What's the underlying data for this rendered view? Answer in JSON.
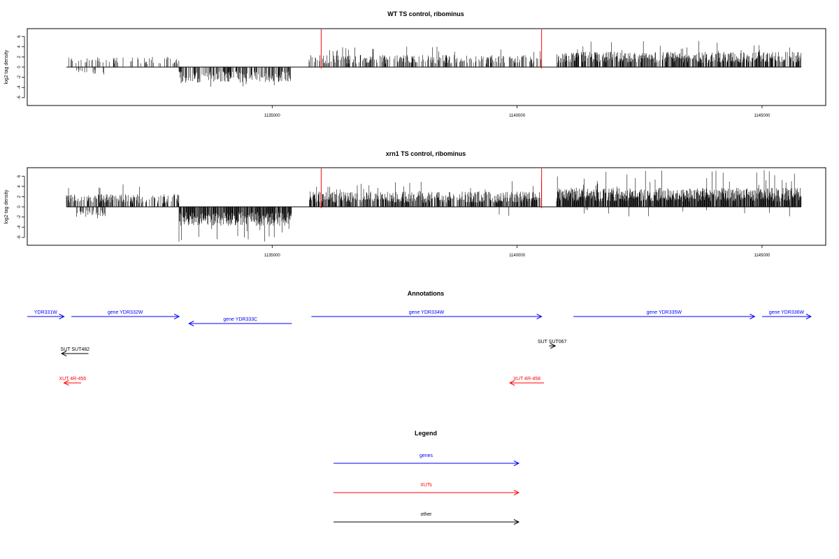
{
  "colors": {
    "gene": "#0000ff",
    "xut": "#ff0000",
    "other": "#000000",
    "bar": "#000000",
    "marker": "#ff0000"
  },
  "chart_data": [
    {
      "type": "bar",
      "title": "WT TS control, ribominus",
      "ylabel": "log2 tag density",
      "ylim": [
        -7.5,
        7.5
      ],
      "y_ticks": [
        -6,
        -4,
        -2,
        0,
        2,
        4,
        6
      ],
      "xlim": [
        1130000,
        1146300
      ],
      "x_ticks": [
        1135000,
        1140000,
        1145000
      ],
      "red_markers": [
        1136000,
        1140500
      ],
      "regions": [
        {
          "from": 1130800,
          "to": 1133100,
          "strand": "+",
          "mean": 1.6,
          "max": 3.6,
          "density": 0.25
        },
        {
          "from": 1131000,
          "to": 1131600,
          "strand": "-",
          "mean": 1.2,
          "max": 1.8,
          "density": 0.15
        },
        {
          "from": 1133100,
          "to": 1135400,
          "strand": "-",
          "mean": 2.4,
          "max": 4.5,
          "density": 0.6
        },
        {
          "from": 1135750,
          "to": 1140500,
          "strand": "+",
          "mean": 1.9,
          "max": 4.2,
          "density": 0.4
        },
        {
          "from": 1140800,
          "to": 1145800,
          "strand": "+",
          "mean": 2.4,
          "max": 5.2,
          "density": 0.7
        }
      ]
    },
    {
      "type": "bar",
      "title": "xrn1 TS control, ribominus",
      "ylabel": "log2 tag density",
      "ylim": [
        -7.5,
        7.5
      ],
      "y_ticks": [
        -6,
        -4,
        -2,
        0,
        2,
        4,
        6
      ],
      "xlim": [
        1130000,
        1146300
      ],
      "x_ticks": [
        1135000,
        1140000,
        1145000
      ],
      "red_markers": [
        1136000,
        1140500
      ],
      "regions": [
        {
          "from": 1130800,
          "to": 1133100,
          "strand": "+",
          "mean": 2.0,
          "max": 5.1,
          "density": 0.5
        },
        {
          "from": 1131000,
          "to": 1131600,
          "strand": "-",
          "mean": 1.6,
          "max": 2.6,
          "density": 0.35
        },
        {
          "from": 1133100,
          "to": 1135400,
          "strand": "-",
          "mean": 3.0,
          "max": 6.9,
          "density": 0.85
        },
        {
          "from": 1135750,
          "to": 1140500,
          "strand": "+",
          "mean": 2.4,
          "max": 5.3,
          "density": 0.7
        },
        {
          "from": 1140800,
          "to": 1145800,
          "strand": "+",
          "mean": 3.0,
          "max": 7.2,
          "density": 0.9
        },
        {
          "from": 1139200,
          "to": 1145700,
          "strand": "-",
          "mean": 1.5,
          "max": 3.0,
          "density": 0.015
        }
      ]
    }
  ],
  "annotations": {
    "title": "Annotations",
    "features": [
      {
        "label": "YDR331W",
        "type": "gene",
        "start": 1130000,
        "end": 1130750,
        "strand": "+",
        "row": 0
      },
      {
        "label": "gene YDR332W",
        "type": "gene",
        "start": 1130900,
        "end": 1133100,
        "strand": "+",
        "row": 0
      },
      {
        "label": "gene YDR333C",
        "type": "gene",
        "start": 1133300,
        "end": 1135400,
        "strand": "-",
        "row": 1
      },
      {
        "label": "gene YDR334W",
        "type": "gene",
        "start": 1135800,
        "end": 1140500,
        "strand": "+",
        "row": 0
      },
      {
        "label": "gene YDR335W",
        "type": "gene",
        "start": 1141150,
        "end": 1144850,
        "strand": "+",
        "row": 0
      },
      {
        "label": "gene YDR336W",
        "type": "gene",
        "start": 1145000,
        "end": 1146000,
        "strand": "+",
        "row": 0
      },
      {
        "label": "SUT SUT482",
        "type": "other",
        "start": 1130700,
        "end": 1131250,
        "strand": "-",
        "row": 2
      },
      {
        "label": "SUT SUT067",
        "type": "other",
        "start": 1140650,
        "end": 1140780,
        "strand": "+",
        "row": 3
      },
      {
        "label": "XUT 4R-456",
        "type": "xut",
        "start": 1130750,
        "end": 1131100,
        "strand": "-",
        "row": 4
      },
      {
        "label": "XUT 4R-458",
        "type": "xut",
        "start": 1139850,
        "end": 1140550,
        "strand": "-",
        "row": 4
      }
    ]
  },
  "legend": {
    "title": "Legend",
    "items": [
      {
        "label": "genes",
        "type": "gene"
      },
      {
        "label": "XUTs",
        "type": "xut"
      },
      {
        "label": "other",
        "type": "other"
      }
    ]
  }
}
